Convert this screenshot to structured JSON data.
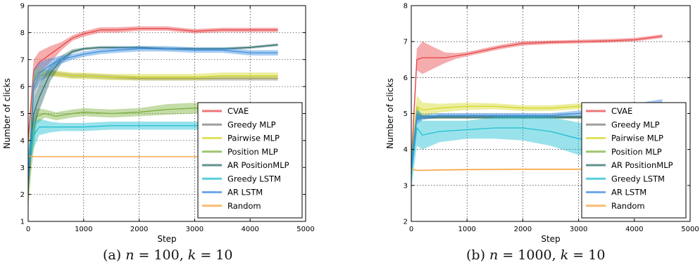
{
  "captions": [
    {
      "label": "(a)",
      "math_n": "n",
      "eq1": " = 100, ",
      "math_k": "k",
      "eq2": " = 10"
    },
    {
      "label": "(b)",
      "math_n": "n",
      "eq1": " = 1000, ",
      "math_k": "k",
      "eq2": " = 10"
    }
  ],
  "colors": {
    "CVAE": "#e8474a",
    "Greedy MLP": "#7f7f7f",
    "Pairwise MLP": "#d4d92a",
    "Position MLP": "#7cb13c",
    "AR PositionMLP": "#2e6e6b",
    "Greedy LSTM": "#1fbfd3",
    "AR LSTM": "#3f8fe0",
    "Random": "#f7a541"
  },
  "chart_data": [
    {
      "type": "line",
      "title": "",
      "xlabel": "Step",
      "ylabel": "Number of clicks",
      "xlim": [
        0,
        5000
      ],
      "ylim": [
        1,
        9
      ],
      "xticks": [
        0,
        1000,
        2000,
        3000,
        4000,
        5000
      ],
      "yticks": [
        1,
        2,
        3,
        4,
        5,
        6,
        7,
        8,
        9
      ],
      "grid": true,
      "legend": "bottom-right",
      "series": [
        {
          "name": "CVAE",
          "x": [
            0,
            100,
            200,
            400,
            600,
            800,
            1000,
            1300,
            1600,
            2000,
            2500,
            3000,
            3500,
            4000,
            4500
          ],
          "y": [
            4.0,
            6.6,
            6.9,
            7.2,
            7.5,
            7.8,
            7.95,
            8.1,
            8.1,
            8.15,
            8.15,
            8.05,
            8.1,
            8.1,
            8.1
          ],
          "band": [
            0.3,
            0.4,
            0.4,
            0.3,
            0.15,
            0.1,
            0.1,
            0.1,
            0.1,
            0.08,
            0.08,
            0.08,
            0.08,
            0.08,
            0.08
          ]
        },
        {
          "name": "Greedy MLP",
          "x": [
            0,
            100,
            200,
            400,
            600,
            800,
            1000,
            1500,
            2000,
            2500,
            3000,
            3500,
            4000,
            4500
          ],
          "y": [
            2.0,
            6.0,
            6.4,
            6.5,
            6.45,
            6.4,
            6.4,
            6.35,
            6.3,
            6.3,
            6.3,
            6.3,
            6.3,
            6.3
          ],
          "band": [
            0.3,
            0.4,
            0.2,
            0.1,
            0.08,
            0.08,
            0.08,
            0.08,
            0.08,
            0.08,
            0.08,
            0.08,
            0.08,
            0.08
          ]
        },
        {
          "name": "Pairwise MLP",
          "x": [
            0,
            100,
            200,
            400,
            600,
            800,
            1000,
            1500,
            2000,
            2500,
            3000,
            3500,
            4000,
            4500
          ],
          "y": [
            3.0,
            6.3,
            6.5,
            6.5,
            6.45,
            6.4,
            6.4,
            6.35,
            6.35,
            6.35,
            6.35,
            6.4,
            6.4,
            6.4
          ],
          "band": [
            0.3,
            0.3,
            0.2,
            0.12,
            0.12,
            0.12,
            0.12,
            0.12,
            0.12,
            0.12,
            0.12,
            0.12,
            0.12,
            0.12
          ]
        },
        {
          "name": "Position MLP",
          "x": [
            0,
            50,
            150,
            300,
            500,
            800,
            1000,
            1500,
            2000,
            2500,
            3000,
            3500,
            4000,
            4500
          ],
          "y": [
            2.2,
            3.5,
            4.9,
            5.0,
            4.9,
            5.0,
            5.05,
            5.0,
            5.05,
            5.15,
            5.2,
            5.2,
            5.2,
            5.2
          ],
          "band": [
            0.7,
            0.8,
            0.3,
            0.15,
            0.15,
            0.15,
            0.15,
            0.15,
            0.15,
            0.2,
            0.2,
            0.2,
            0.2,
            0.2
          ]
        },
        {
          "name": "AR PositionMLP",
          "x": [
            0,
            100,
            200,
            400,
            600,
            800,
            1000,
            1300,
            1600,
            2000,
            2500,
            3000,
            3500,
            4000,
            4500
          ],
          "y": [
            2.5,
            5.0,
            5.6,
            6.5,
            7.0,
            7.3,
            7.4,
            7.45,
            7.45,
            7.45,
            7.4,
            7.4,
            7.4,
            7.45,
            7.55
          ],
          "band": [
            0.5,
            0.6,
            0.5,
            0.3,
            0.15,
            0.08,
            0.05,
            0.05,
            0.05,
            0.05,
            0.05,
            0.05,
            0.05,
            0.05,
            0.05
          ]
        },
        {
          "name": "Greedy LSTM",
          "x": [
            0,
            100,
            200,
            400,
            600,
            800,
            1000,
            1500,
            2000,
            2500,
            3000,
            3500,
            4000,
            4500
          ],
          "y": [
            3.3,
            4.2,
            4.5,
            4.5,
            4.5,
            4.5,
            4.5,
            4.55,
            4.55,
            4.55,
            4.55,
            4.55,
            4.55,
            4.55
          ],
          "band": [
            0.4,
            0.5,
            0.3,
            0.2,
            0.15,
            0.15,
            0.15,
            0.15,
            0.15,
            0.15,
            0.15,
            0.15,
            0.15,
            0.15
          ]
        },
        {
          "name": "AR LSTM",
          "x": [
            0,
            100,
            200,
            400,
            600,
            800,
            1000,
            1300,
            1600,
            2000,
            2500,
            3000,
            3500,
            4000,
            4500
          ],
          "y": [
            2.5,
            6.2,
            6.5,
            6.8,
            7.0,
            7.1,
            7.2,
            7.3,
            7.35,
            7.4,
            7.4,
            7.35,
            7.35,
            7.25,
            7.25
          ],
          "band": [
            0.4,
            0.4,
            0.4,
            0.25,
            0.15,
            0.1,
            0.1,
            0.1,
            0.1,
            0.1,
            0.1,
            0.1,
            0.1,
            0.1,
            0.1
          ]
        },
        {
          "name": "Random",
          "x": [
            0,
            100,
            500,
            1000,
            2000,
            3000,
            4000,
            4500
          ],
          "y": [
            3.42,
            3.4,
            3.4,
            3.4,
            3.4,
            3.4,
            3.4,
            3.4
          ],
          "band": [
            0.02,
            0.02,
            0.02,
            0.02,
            0.02,
            0.02,
            0.02,
            0.02
          ]
        }
      ]
    },
    {
      "type": "line",
      "title": "",
      "xlabel": "Step",
      "ylabel": "Number of clicks",
      "xlim": [
        0,
        5000
      ],
      "ylim": [
        2,
        8
      ],
      "xticks": [
        0,
        1000,
        2000,
        3000,
        4000,
        5000
      ],
      "yticks": [
        2,
        3,
        4,
        5,
        6,
        7,
        8
      ],
      "grid": true,
      "legend": "bottom-right",
      "series": [
        {
          "name": "CVAE",
          "x": [
            0,
            100,
            200,
            400,
            600,
            800,
            1000,
            1300,
            1600,
            2000,
            2500,
            3000,
            3500,
            4000,
            4500
          ],
          "y": [
            3.6,
            6.5,
            6.55,
            6.55,
            6.55,
            6.6,
            6.65,
            6.75,
            6.85,
            6.95,
            6.98,
            7.0,
            7.02,
            7.05,
            7.15
          ],
          "band": [
            0.3,
            0.3,
            0.45,
            0.3,
            0.15,
            0.08,
            0.06,
            0.06,
            0.06,
            0.06,
            0.05,
            0.05,
            0.05,
            0.05,
            0.05
          ]
        },
        {
          "name": "Greedy MLP",
          "x": [
            0,
            100,
            200,
            500,
            1000,
            1500,
            2000,
            2500,
            3000,
            3500,
            4000,
            4500
          ],
          "y": [
            3.8,
            4.9,
            4.9,
            4.9,
            4.9,
            4.9,
            4.9,
            4.9,
            4.9,
            4.9,
            4.9,
            4.9
          ],
          "band": [
            0.3,
            0.1,
            0.05,
            0.04,
            0.04,
            0.04,
            0.04,
            0.04,
            0.04,
            0.04,
            0.04,
            0.04
          ]
        },
        {
          "name": "Pairwise MLP",
          "x": [
            0,
            100,
            200,
            500,
            1000,
            1500,
            2000,
            2500,
            3000,
            3500,
            4000,
            4500
          ],
          "y": [
            3.6,
            5.2,
            5.1,
            5.15,
            5.2,
            5.2,
            5.15,
            5.15,
            5.2,
            5.2,
            5.2,
            5.2
          ],
          "band": [
            0.3,
            0.3,
            0.2,
            0.12,
            0.1,
            0.08,
            0.08,
            0.08,
            0.08,
            0.08,
            0.08,
            0.08
          ]
        },
        {
          "name": "Position MLP",
          "x": [
            0,
            100,
            200,
            500,
            1000,
            1500,
            2000,
            2500,
            3000,
            3500,
            4000,
            4500
          ],
          "y": [
            3.4,
            5.0,
            4.9,
            4.9,
            4.9,
            4.9,
            4.9,
            4.9,
            4.9,
            4.9,
            4.9,
            4.9
          ],
          "band": [
            0.4,
            0.2,
            0.05,
            0.04,
            0.04,
            0.04,
            0.04,
            0.04,
            0.04,
            0.04,
            0.04,
            0.04
          ]
        },
        {
          "name": "AR PositionMLP",
          "x": [
            0,
            100,
            200,
            500,
            1000,
            1500,
            2000,
            2500,
            3000,
            3500,
            4000,
            4500
          ],
          "y": [
            3.5,
            4.9,
            4.9,
            4.9,
            4.9,
            4.9,
            4.9,
            4.9,
            4.9,
            4.9,
            4.9,
            4.9
          ],
          "band": [
            0.3,
            0.1,
            0.05,
            0.04,
            0.04,
            0.04,
            0.04,
            0.04,
            0.04,
            0.04,
            0.04,
            0.04
          ]
        },
        {
          "name": "Greedy LSTM",
          "x": [
            0,
            100,
            200,
            500,
            1000,
            1500,
            2000,
            2500,
            3000,
            3500,
            4000,
            4500
          ],
          "y": [
            3.3,
            4.6,
            4.4,
            4.5,
            4.55,
            4.6,
            4.6,
            4.5,
            4.3,
            4.2,
            4.25,
            4.3
          ],
          "band": [
            0.4,
            0.5,
            0.4,
            0.3,
            0.25,
            0.3,
            0.35,
            0.4,
            0.45,
            0.4,
            0.4,
            0.4
          ]
        },
        {
          "name": "AR LSTM",
          "x": [
            0,
            100,
            200,
            500,
            1000,
            1500,
            2000,
            2500,
            3000,
            3500,
            4000,
            4500
          ],
          "y": [
            3.5,
            4.9,
            4.9,
            4.95,
            4.95,
            4.95,
            4.95,
            4.95,
            5.0,
            5.05,
            5.15,
            5.25
          ],
          "band": [
            0.3,
            0.2,
            0.08,
            0.06,
            0.06,
            0.06,
            0.06,
            0.06,
            0.08,
            0.1,
            0.12,
            0.15
          ]
        },
        {
          "name": "Random",
          "x": [
            0,
            100,
            200,
            500,
            1000,
            2000,
            3000,
            4000,
            4500
          ],
          "y": [
            3.45,
            3.42,
            3.42,
            3.43,
            3.44,
            3.45,
            3.45,
            3.45,
            3.45
          ],
          "band": [
            0.02,
            0.02,
            0.02,
            0.02,
            0.02,
            0.02,
            0.02,
            0.02,
            0.02
          ]
        }
      ]
    }
  ]
}
